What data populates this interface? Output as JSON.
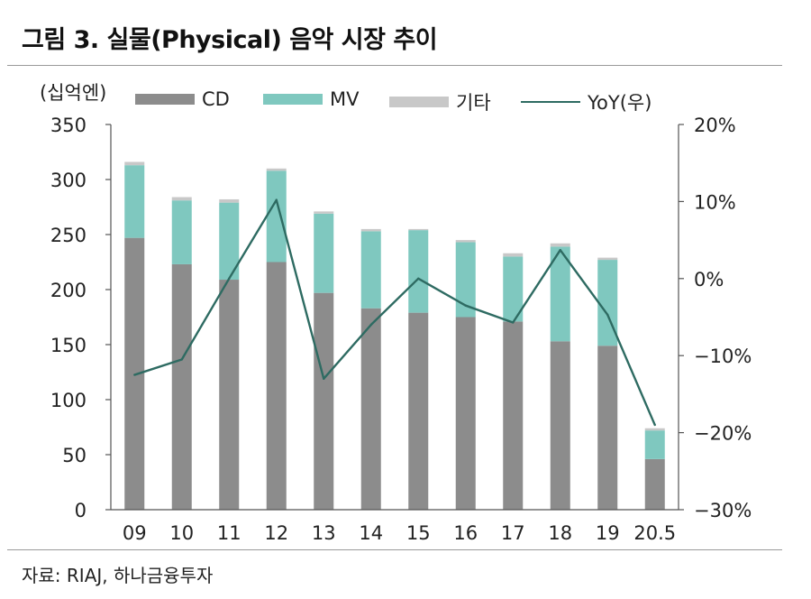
{
  "figure": {
    "title": "그림 3. 실물(Physical) 음악 시장 추이",
    "unit_label": "(십억엔)",
    "source": "자료: RIAJ, 하나금융투자"
  },
  "chart_data": {
    "type": "bar",
    "stacked": true,
    "categories": [
      "09",
      "10",
      "11",
      "12",
      "13",
      "14",
      "15",
      "16",
      "17",
      "18",
      "19",
      "20.5"
    ],
    "series": [
      {
        "name": "CD",
        "type": "bar",
        "axis": "left",
        "color": "#8c8c8c",
        "values": [
          247,
          223,
          209,
          225,
          197,
          183,
          179,
          175,
          171,
          153,
          149,
          46
        ]
      },
      {
        "name": "MV",
        "type": "bar",
        "axis": "left",
        "color": "#7fc8bf",
        "values": [
          66,
          58,
          70,
          83,
          72,
          70,
          75,
          68,
          59,
          86,
          78,
          26
        ]
      },
      {
        "name": "기타",
        "type": "bar",
        "axis": "left",
        "color": "#c8c8c8",
        "values": [
          3,
          3,
          3,
          2,
          2,
          2,
          1,
          2,
          3,
          3,
          2,
          2
        ]
      },
      {
        "name": "YoY(우)",
        "type": "line",
        "axis": "right",
        "color": "#2e6b62",
        "values": [
          -12.5,
          -10.5,
          0.0,
          10.2,
          -13.0,
          -6.0,
          0.0,
          -3.5,
          -5.7,
          3.7,
          -4.7,
          -19.0
        ]
      }
    ],
    "left_axis": {
      "min": 0,
      "max": 350,
      "step": 50,
      "tick_labels": [
        "0",
        "50",
        "100",
        "150",
        "200",
        "250",
        "300",
        "350"
      ]
    },
    "right_axis": {
      "min": -30,
      "max": 20,
      "step": 10,
      "tick_labels": [
        "−30%",
        "−20%",
        "−10%",
        "0%",
        "10%",
        "20%"
      ]
    },
    "legend_position": "top",
    "grid": false
  }
}
